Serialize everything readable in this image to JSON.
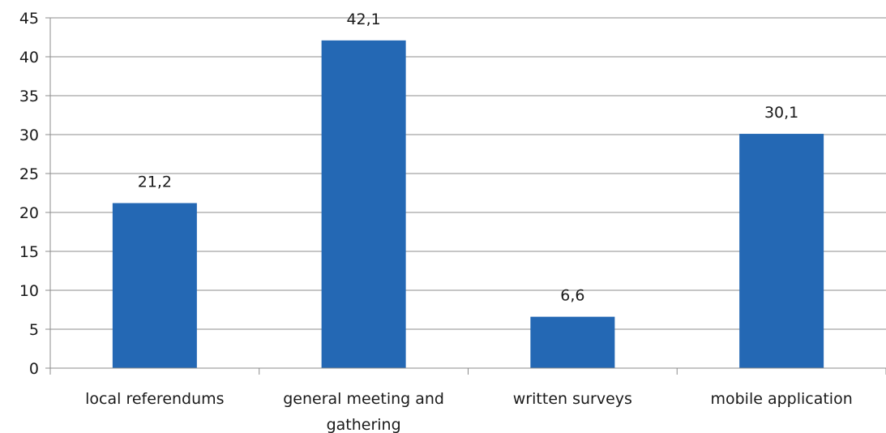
{
  "chart_data": {
    "type": "bar",
    "categories": [
      [
        "local referendums"
      ],
      [
        "general meeting and",
        "gathering"
      ],
      [
        "written surveys"
      ],
      [
        "mobile application"
      ]
    ],
    "values": [
      21.2,
      42.1,
      6.6,
      30.1
    ],
    "data_labels": [
      "21,2",
      "42,1",
      "6,6",
      "30,1"
    ],
    "ylim": [
      0,
      45
    ],
    "yticks": [
      "0",
      "5",
      "10",
      "15",
      "20",
      "25",
      "30",
      "35",
      "40",
      "45"
    ],
    "grid": true,
    "legend": "none",
    "bar_color": "#2468b4"
  }
}
